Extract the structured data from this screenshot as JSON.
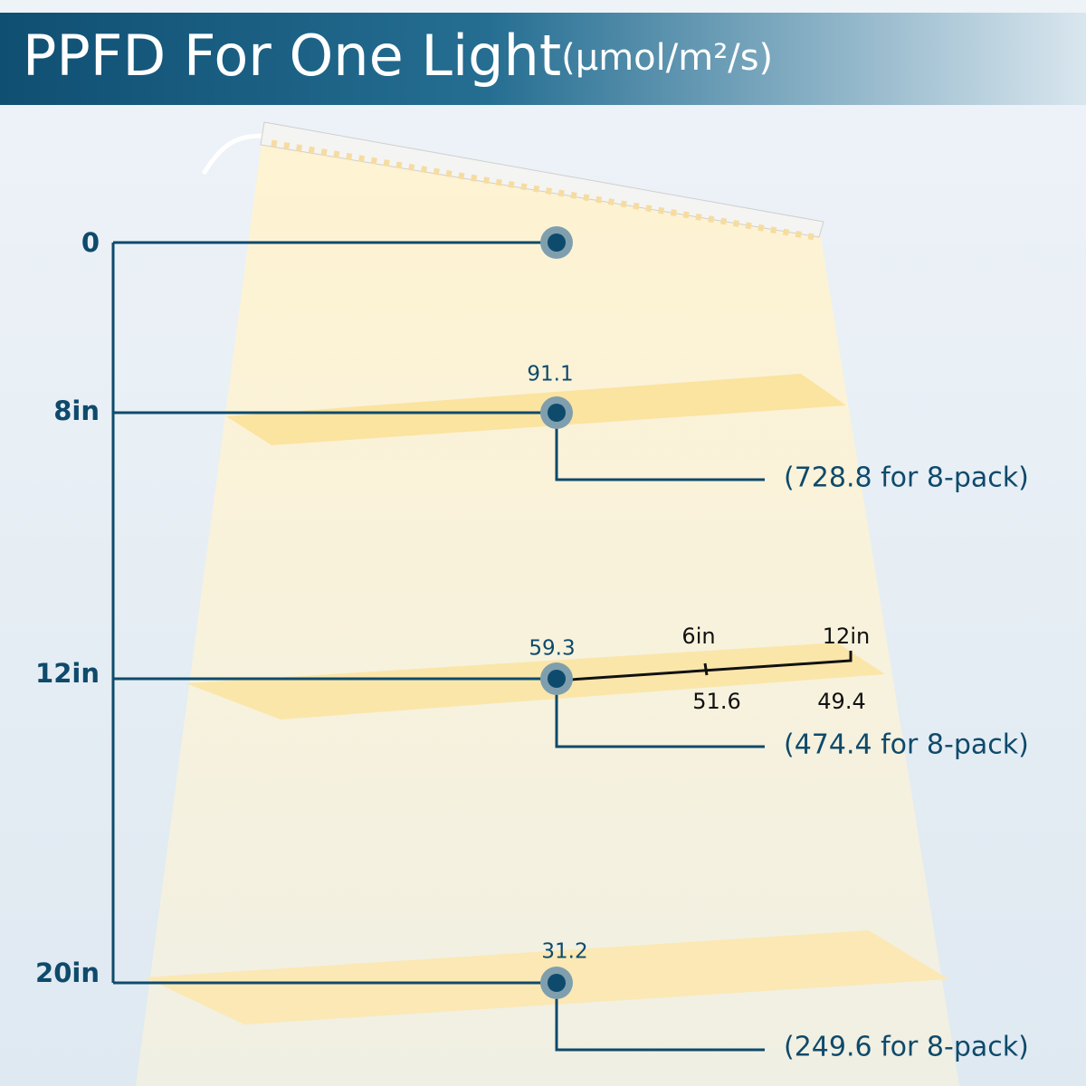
{
  "header": {
    "title": "PPFD For One Light",
    "unit": "(μmol/m²/s)"
  },
  "levels": [
    {
      "label": "0"
    },
    {
      "label": "8in",
      "value": "91.1",
      "pack_note": "(728.8 for 8-pack)"
    },
    {
      "label": "12in",
      "value": "59.3",
      "pack_note": "(474.4 for 8-pack)",
      "spread": [
        {
          "distance": "6in",
          "value": "51.6"
        },
        {
          "distance": "12in",
          "value": "49.4"
        }
      ]
    },
    {
      "label": "20in",
      "value": "31.2",
      "pack_note": "(249.6 for 8-pack)"
    }
  ]
}
